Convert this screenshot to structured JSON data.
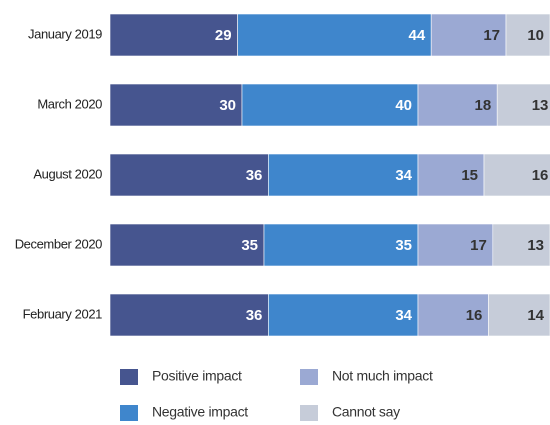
{
  "chart_data": {
    "type": "stacked_barh",
    "categories": [
      "January 2019",
      "March 2020",
      "August 2020",
      "December 2020",
      "February 2021"
    ],
    "series": [
      {
        "name": "Positive impact",
        "color": "#46558f",
        "values": [
          29,
          30,
          36,
          35,
          36
        ]
      },
      {
        "name": "Negative impact",
        "color": "#3f86cc",
        "values": [
          44,
          40,
          34,
          35,
          34
        ]
      },
      {
        "name": "Not much impact",
        "color": "#9ba9d3",
        "values": [
          17,
          18,
          15,
          17,
          16
        ]
      },
      {
        "name": "Cannot say",
        "color": "#c6ccd9",
        "values": [
          10,
          13,
          16,
          13,
          14
        ]
      }
    ],
    "xlim": [
      0,
      100
    ]
  }
}
